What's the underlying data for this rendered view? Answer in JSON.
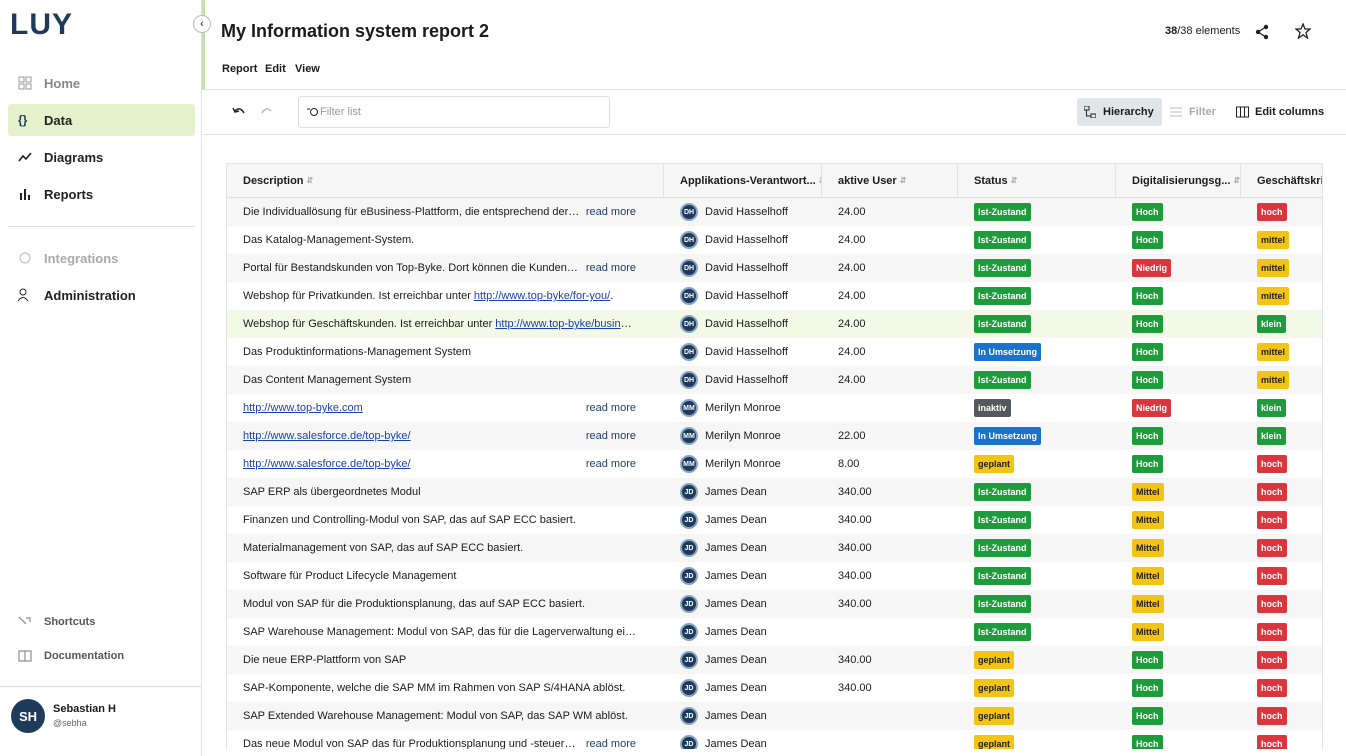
{
  "sidebar": {
    "logo": "LUY",
    "nav": [
      "Home",
      "Data",
      "Diagrams",
      "Reports"
    ],
    "nav2": [
      "Integrations",
      "Administration"
    ],
    "bottom": [
      "Shortcuts",
      "Documentation"
    ],
    "user": {
      "initials": "SH",
      "name": "Sebastian H",
      "handle": "@sebha"
    }
  },
  "header": {
    "title": "My Information system report 2",
    "count": "38",
    "count_rest": "/38 elements",
    "menu": [
      "Report",
      "Edit",
      "View"
    ]
  },
  "toolbar": {
    "filter_placeholder": "Filter list",
    "hierarchy": "Hierarchy",
    "filter": "Filter",
    "edit_columns": "Edit columns"
  },
  "table": {
    "columns": [
      "Description",
      "Applikations-Verantwort...",
      "aktive User",
      "Status",
      "Digitalisierungsg...",
      "Geschäftskritik"
    ],
    "rows": [
      {
        "description": "Die Individuallösung für eBusiness-Plattform, die entsprechend der Bedürfnisse der Kunden angepasst wird",
        "read_more": "read more",
        "initials": "DH",
        "owner": "David Hasselhoff",
        "users": "24.00",
        "status": "Ist-Zustand",
        "status_color": "#1e9b3b",
        "digital": "Hoch",
        "digital_color": "#1e9b3b",
        "criticality": "hoch",
        "criticality_color": "#d9363e"
      },
      {
        "description": "Das Katalog-Management-System.",
        "initials": "DH",
        "owner": "David Hasselhoff",
        "users": "24.00",
        "status": "Ist-Zustand",
        "status_color": "#1e9b3b",
        "digital": "Hoch",
        "digital_color": "#1e9b3b",
        "criticality": "mittel",
        "criticality_color": "#f3c316"
      },
      {
        "description": "Portal für Bestandskunden von Top-Byke. Dort können die Kunden sich über die Produkte informieren",
        "read_more": "read more",
        "initials": "DH",
        "owner": "David Hasselhoff",
        "users": "24.00",
        "status": "Ist-Zustand",
        "status_color": "#1e9b3b",
        "digital": "Niedrig",
        "digital_color": "#d9363e",
        "criticality": "mittel",
        "criticality_color": "#f3c316"
      },
      {
        "description": "Webshop für Privatkunden. Ist erreichbar unter",
        "link": "http://www.top-byke/for-you/",
        "suffix": ".",
        "initials": "DH",
        "owner": "David Hasselhoff",
        "users": "24.00",
        "status": "Ist-Zustand",
        "status_color": "#1e9b3b",
        "digital": "Hoch",
        "digital_color": "#1e9b3b",
        "criticality": "mittel",
        "criticality_color": "#f3c316"
      },
      {
        "description": "Webshop für Geschäftskunden. Ist erreichbar unter",
        "link": "http://www.top-byke/business/",
        "suffix": ".",
        "initials": "DH",
        "owner": "David Hasselhoff",
        "users": "24.00",
        "status": "Ist-Zustand",
        "status_color": "#1e9b3b",
        "digital": "Hoch",
        "digital_color": "#1e9b3b",
        "criticality": "klein",
        "criticality_color": "#1e9b3b"
      },
      {
        "description": "Das Produktinformations-Management System",
        "initials": "DH",
        "owner": "David Hasselhoff",
        "users": "24.00",
        "status": "In Umsetzung",
        "status_color": "#1a72c9",
        "digital": "Hoch",
        "digital_color": "#1e9b3b",
        "criticality": "mittel",
        "criticality_color": "#f3c316"
      },
      {
        "description": "Das Content Management System",
        "initials": "DH",
        "owner": "David Hasselhoff",
        "users": "24.00",
        "status": "Ist-Zustand",
        "status_color": "#1e9b3b",
        "digital": "Hoch",
        "digital_color": "#1e9b3b",
        "criticality": "mittel",
        "criticality_color": "#f3c316"
      },
      {
        "link": "http://www.top-byke.com",
        "read_more": "read more",
        "initials": "MM",
        "owner": "Merilyn Monroe",
        "status": "inaktiv",
        "status_color": "#55595e",
        "digital": "Niedrig",
        "digital_color": "#d9363e",
        "criticality": "klein",
        "criticality_color": "#1e9b3b"
      },
      {
        "link": "http://www.salesforce.de/top-byke/",
        "read_more": "read more",
        "initials": "MM",
        "owner": "Merilyn Monroe",
        "users": "22.00",
        "status": "In Umsetzung",
        "status_color": "#1a72c9",
        "digital": "Hoch",
        "digital_color": "#1e9b3b",
        "criticality": "klein",
        "criticality_color": "#1e9b3b"
      },
      {
        "link": "http://www.salesforce.de/top-byke/",
        "read_more": "read more",
        "initials": "MM",
        "owner": "Merilyn Monroe",
        "users": "8.00",
        "status": "geplant",
        "status_color": "#f3c316",
        "digital": "Hoch",
        "digital_color": "#1e9b3b",
        "criticality": "hoch",
        "criticality_color": "#d9363e"
      },
      {
        "description": "SAP ERP als übergeordnetes Modul",
        "initials": "JD",
        "owner": "James Dean",
        "users": "340.00",
        "status": "Ist-Zustand",
        "status_color": "#1e9b3b",
        "digital": "Mittel",
        "digital_color": "#f3c316",
        "criticality": "hoch",
        "criticality_color": "#d9363e"
      },
      {
        "description": "Finanzen und Controlling-Modul von SAP, das auf SAP ECC basiert.",
        "initials": "JD",
        "owner": "James Dean",
        "users": "340.00",
        "status": "Ist-Zustand",
        "status_color": "#1e9b3b",
        "digital": "Mittel",
        "digital_color": "#f3c316",
        "criticality": "hoch",
        "criticality_color": "#d9363e"
      },
      {
        "description": "Materialmanagement von SAP, das auf SAP ECC basiert.",
        "initials": "JD",
        "owner": "James Dean",
        "users": "340.00",
        "status": "Ist-Zustand",
        "status_color": "#1e9b3b",
        "digital": "Mittel",
        "digital_color": "#f3c316",
        "criticality": "hoch",
        "criticality_color": "#d9363e"
      },
      {
        "description": "Software für Product Lifecycle Management",
        "initials": "JD",
        "owner": "James Dean",
        "users": "340.00",
        "status": "Ist-Zustand",
        "status_color": "#1e9b3b",
        "digital": "Mittel",
        "digital_color": "#f3c316",
        "criticality": "hoch",
        "criticality_color": "#d9363e"
      },
      {
        "description": "Modul von SAP für die Produktionsplanung, das auf SAP ECC basiert.",
        "initials": "JD",
        "owner": "James Dean",
        "users": "340.00",
        "status": "Ist-Zustand",
        "status_color": "#1e9b3b",
        "digital": "Mittel",
        "digital_color": "#f3c316",
        "criticality": "hoch",
        "criticality_color": "#d9363e"
      },
      {
        "description": "SAP Warehouse Management: Modul von SAP, das für die Lagerverwaltung eingesetzt wird.",
        "initials": "JD",
        "owner": "James Dean",
        "status": "Ist-Zustand",
        "status_color": "#1e9b3b",
        "digital": "Mittel",
        "digital_color": "#f3c316",
        "criticality": "hoch",
        "criticality_color": "#d9363e"
      },
      {
        "description": "Die neue ERP-Plattform von SAP",
        "initials": "JD",
        "owner": "James Dean",
        "users": "340.00",
        "status": "geplant",
        "status_color": "#f3c316",
        "digital": "Hoch",
        "digital_color": "#1e9b3b",
        "criticality": "hoch",
        "criticality_color": "#d9363e"
      },
      {
        "description": "SAP-Komponente, welche die SAP MM im Rahmen von SAP S/4HANA ablöst.",
        "initials": "JD",
        "owner": "James Dean",
        "users": "340.00",
        "status": "geplant",
        "status_color": "#f3c316",
        "digital": "Hoch",
        "digital_color": "#1e9b3b",
        "criticality": "hoch",
        "criticality_color": "#d9363e"
      },
      {
        "description": "SAP Extended Warehouse Management: Modul von SAP, das SAP WM ablöst.",
        "initials": "JD",
        "owner": "James Dean",
        "status": "geplant",
        "status_color": "#f3c316",
        "digital": "Hoch",
        "digital_color": "#1e9b3b",
        "criticality": "hoch",
        "criticality_color": "#d9363e"
      },
      {
        "description": "Das neue Modul von SAP das für Produktionsplanung und -steuerung (SAP PP/DS)",
        "read_more": "read more",
        "initials": "JD",
        "owner": "James Dean",
        "status": "geplant",
        "status_color": "#f3c316",
        "digital": "Hoch",
        "digital_color": "#1e9b3b",
        "criticality": "hoch",
        "criticality_color": "#d9363e"
      }
    ]
  }
}
